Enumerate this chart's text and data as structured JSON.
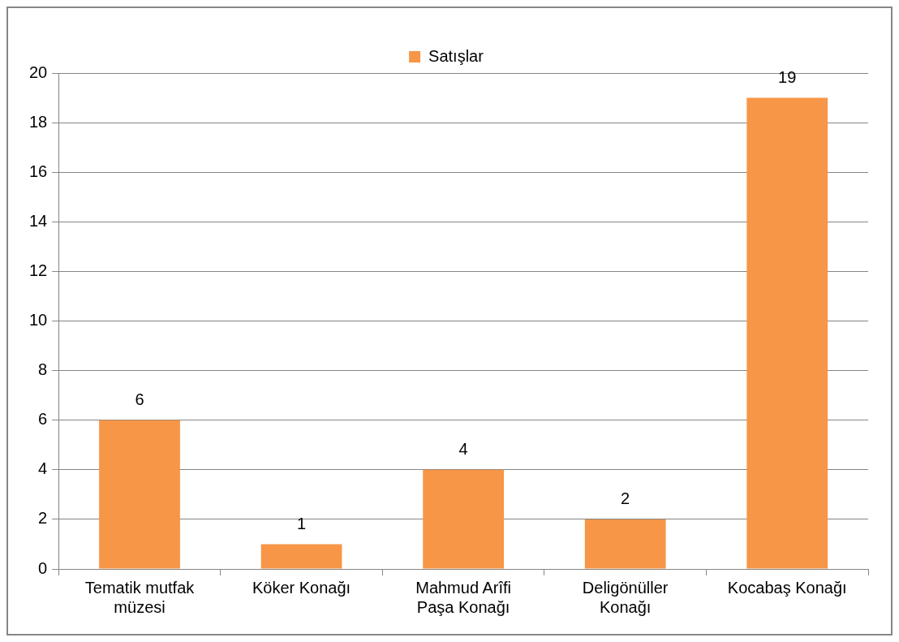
{
  "chart_data": {
    "type": "bar",
    "categories": [
      "Tematik mutfak müzesi",
      "Köker Konağı",
      "Mahmud Arîfi Paşa Konağı",
      "Deligönüller Konağı",
      "Kocabaş Konağı"
    ],
    "series": [
      {
        "name": "Satışlar",
        "color": "#f79646",
        "values": [
          6,
          1,
          4,
          2,
          19
        ]
      }
    ],
    "ylim": [
      0,
      20
    ],
    "yticks": [
      0,
      2,
      4,
      6,
      8,
      10,
      12,
      14,
      16,
      18,
      20
    ],
    "grid": "y",
    "legend": "top",
    "data_labels": true
  }
}
